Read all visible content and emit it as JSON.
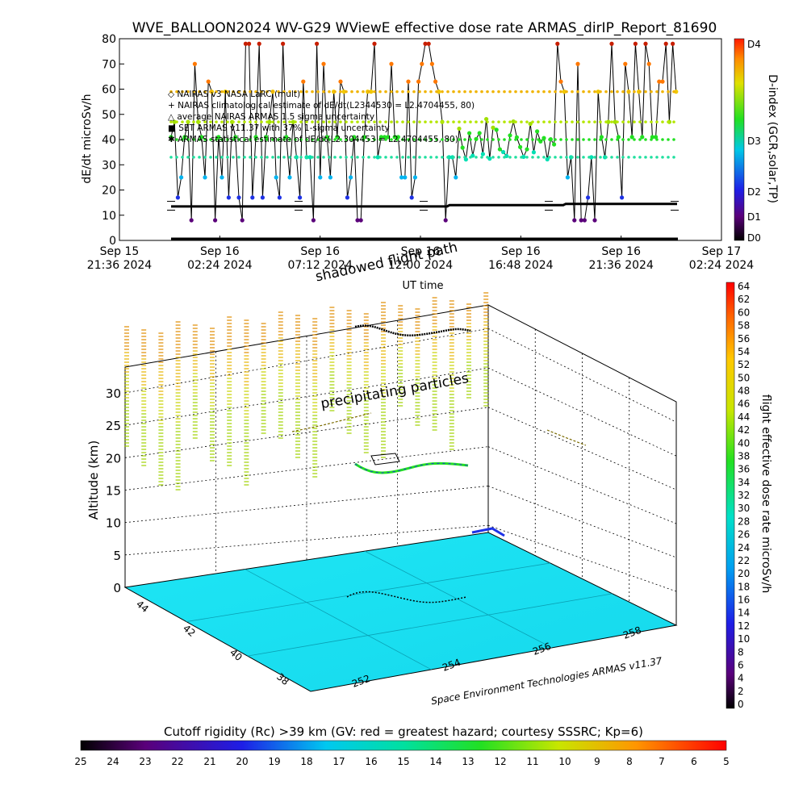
{
  "title": "WVE_BALLOON2024 WV-G29 WViewE effective dose rate ARMAS_dirIP_Report_81690",
  "top_chart": {
    "ylabel": "dE/dt microSv/h",
    "xlabel": "UT time",
    "y_ticks": [
      "0",
      "10",
      "20",
      "30",
      "40",
      "50",
      "60",
      "70",
      "80"
    ],
    "x_ticks": [
      {
        "l1": "Sep 15",
        "l2": "21:36 2024"
      },
      {
        "l1": "Sep 16",
        "l2": "02:24 2024"
      },
      {
        "l1": "Sep 16",
        "l2": "07:12 2024"
      },
      {
        "l1": "Sep 16",
        "l2": "12:00 2024"
      },
      {
        "l1": "Sep 16",
        "l2": "16:48 2024"
      },
      {
        "l1": "Sep 16",
        "l2": "21:36 2024"
      },
      {
        "l1": "Sep 17",
        "l2": "02:24 2024"
      }
    ],
    "legend": [
      "◇ NAIRAS v3 NASA LaRC (mult)",
      "+ NAIRAS climatological estimate of dE/dt(L2344530 = L2.4704455, 80)",
      "△ average NAIRAS ARMAS 1.5 sigma uncertainty",
      "■ SET ARMAS v11.37 with 37% 1-sigma uncertainty",
      "✱ ARMAS statistical estimate of dE/dt(L2.304453 = L2.4704455, 80)"
    ],
    "dindex_label": "D-index (GCR,solar,TP)",
    "dindex_ticks": [
      "D4",
      "D3",
      "D2",
      "D1",
      "D0"
    ]
  },
  "annotations": {
    "shadowed_flight_path": "shadowed flight path",
    "precipitating": "precipitating particles",
    "credit": "Space Environment Technologies ARMAS v11.37"
  },
  "bottom_chart": {
    "ylabel": "Altitude (km)",
    "z_ticks": [
      "0",
      "5",
      "10",
      "15",
      "20",
      "25",
      "30"
    ],
    "lat_ticks": [
      "44",
      "42",
      "40",
      "38"
    ],
    "lon_ticks": [
      "252",
      "254",
      "256",
      "258"
    ],
    "colorbar_label": "flight effective dose rate microSv/h",
    "colorbar_ticks": [
      "64",
      "62",
      "60",
      "58",
      "56",
      "54",
      "52",
      "50",
      "48",
      "46",
      "44",
      "42",
      "40",
      "38",
      "36",
      "34",
      "32",
      "30",
      "28",
      "26",
      "24",
      "22",
      "20",
      "18",
      "16",
      "14",
      "12",
      "10",
      "8",
      "6",
      "4",
      "2",
      "0"
    ]
  },
  "cutoff_bar": {
    "label": "Cutoff rigidity (Rc) >39 km (GV: red = greatest hazard; courtesy SSSRC; Kp=6)",
    "ticks": [
      "25",
      "24",
      "23",
      "22",
      "21",
      "20",
      "19",
      "18",
      "17",
      "16",
      "15",
      "14",
      "13",
      "12",
      "11",
      "10",
      "9",
      "8",
      "7",
      "6",
      "5"
    ]
  },
  "chart_data": {
    "type": "scatter",
    "x_range": [
      "2024-09-15 21:36",
      "2024-09-17 02:24"
    ],
    "ylim": [
      0,
      80
    ],
    "series": [
      {
        "name": "NAIRAS climatological estimate",
        "values_approx": [
          14,
          13.5,
          13.5,
          13.5,
          14,
          14.5,
          15
        ]
      },
      {
        "name": "SET ARMAS v11.37",
        "values_approx_range": [
          0,
          80
        ]
      }
    ],
    "altitude_range_km": [
      0,
      33
    ],
    "colorbar_range": [
      0,
      64
    ],
    "cutoff_range": [
      25,
      5
    ]
  }
}
